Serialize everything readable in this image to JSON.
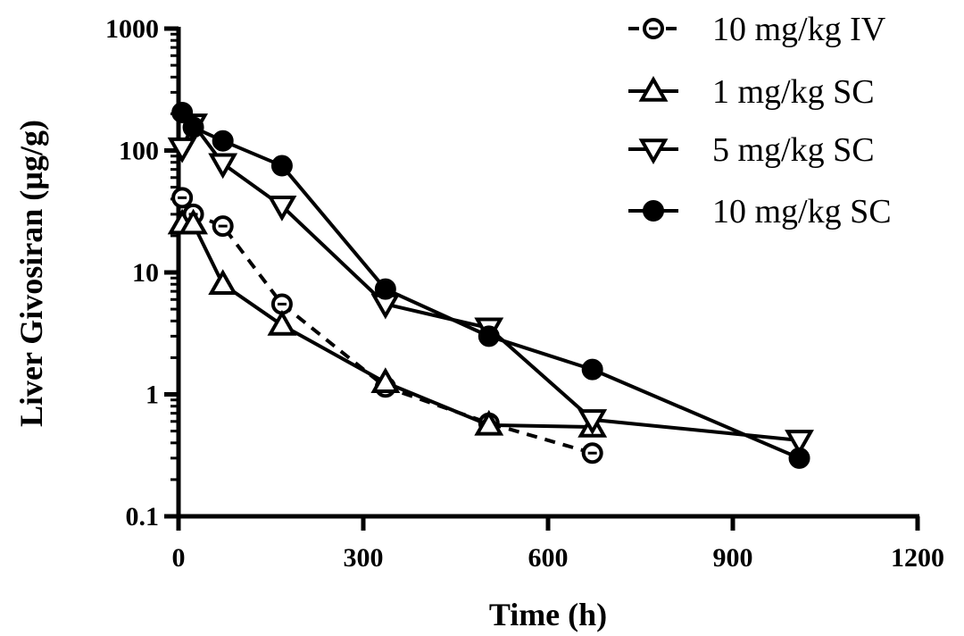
{
  "chart_data": {
    "type": "line",
    "title": "",
    "xlabel": "Time (h)",
    "ylabel": "Liver Givosiran (µg/g)",
    "xlim": [
      0,
      1200
    ],
    "ylim": [
      0.1,
      1000
    ],
    "yscale": "log",
    "xticks": [
      0,
      300,
      600,
      900,
      1200
    ],
    "xtick_labels": [
      "0",
      "300",
      "600",
      "900",
      "1200"
    ],
    "yticks": [
      0.1,
      1,
      10,
      100,
      1000
    ],
    "ytick_labels": [
      "0.1",
      "1",
      "10",
      "100",
      "1000"
    ],
    "grid": false,
    "legend_position": "top-right",
    "series": [
      {
        "name": "10 mg/kg IV",
        "marker": "open-circle",
        "line": "dashed",
        "color": "#000000",
        "x": [
          6,
          24,
          72,
          168,
          336,
          504,
          672
        ],
        "y": [
          41,
          30,
          24,
          5.5,
          1.15,
          0.58,
          0.33
        ]
      },
      {
        "name": "1 mg/kg SC",
        "marker": "open-triangle-up",
        "line": "solid",
        "color": "#000000",
        "x": [
          6,
          24,
          72,
          168,
          336,
          504,
          672
        ],
        "y": [
          25,
          25,
          8,
          3.7,
          1.25,
          0.56,
          0.54
        ]
      },
      {
        "name": "5 mg/kg SC",
        "marker": "open-triangle-down",
        "line": "solid",
        "color": "#000000",
        "x": [
          6,
          24,
          72,
          168,
          336,
          504,
          672,
          1008
        ],
        "y": [
          105,
          165,
          78,
          35,
          5.5,
          3.5,
          0.62,
          0.42
        ]
      },
      {
        "name": "10 mg/kg SC",
        "marker": "filled-circle",
        "line": "solid",
        "color": "#000000",
        "x": [
          6,
          24,
          72,
          168,
          336,
          504,
          672,
          1008
        ],
        "y": [
          205,
          155,
          120,
          75,
          7.3,
          3.0,
          1.6,
          0.3
        ]
      }
    ]
  }
}
